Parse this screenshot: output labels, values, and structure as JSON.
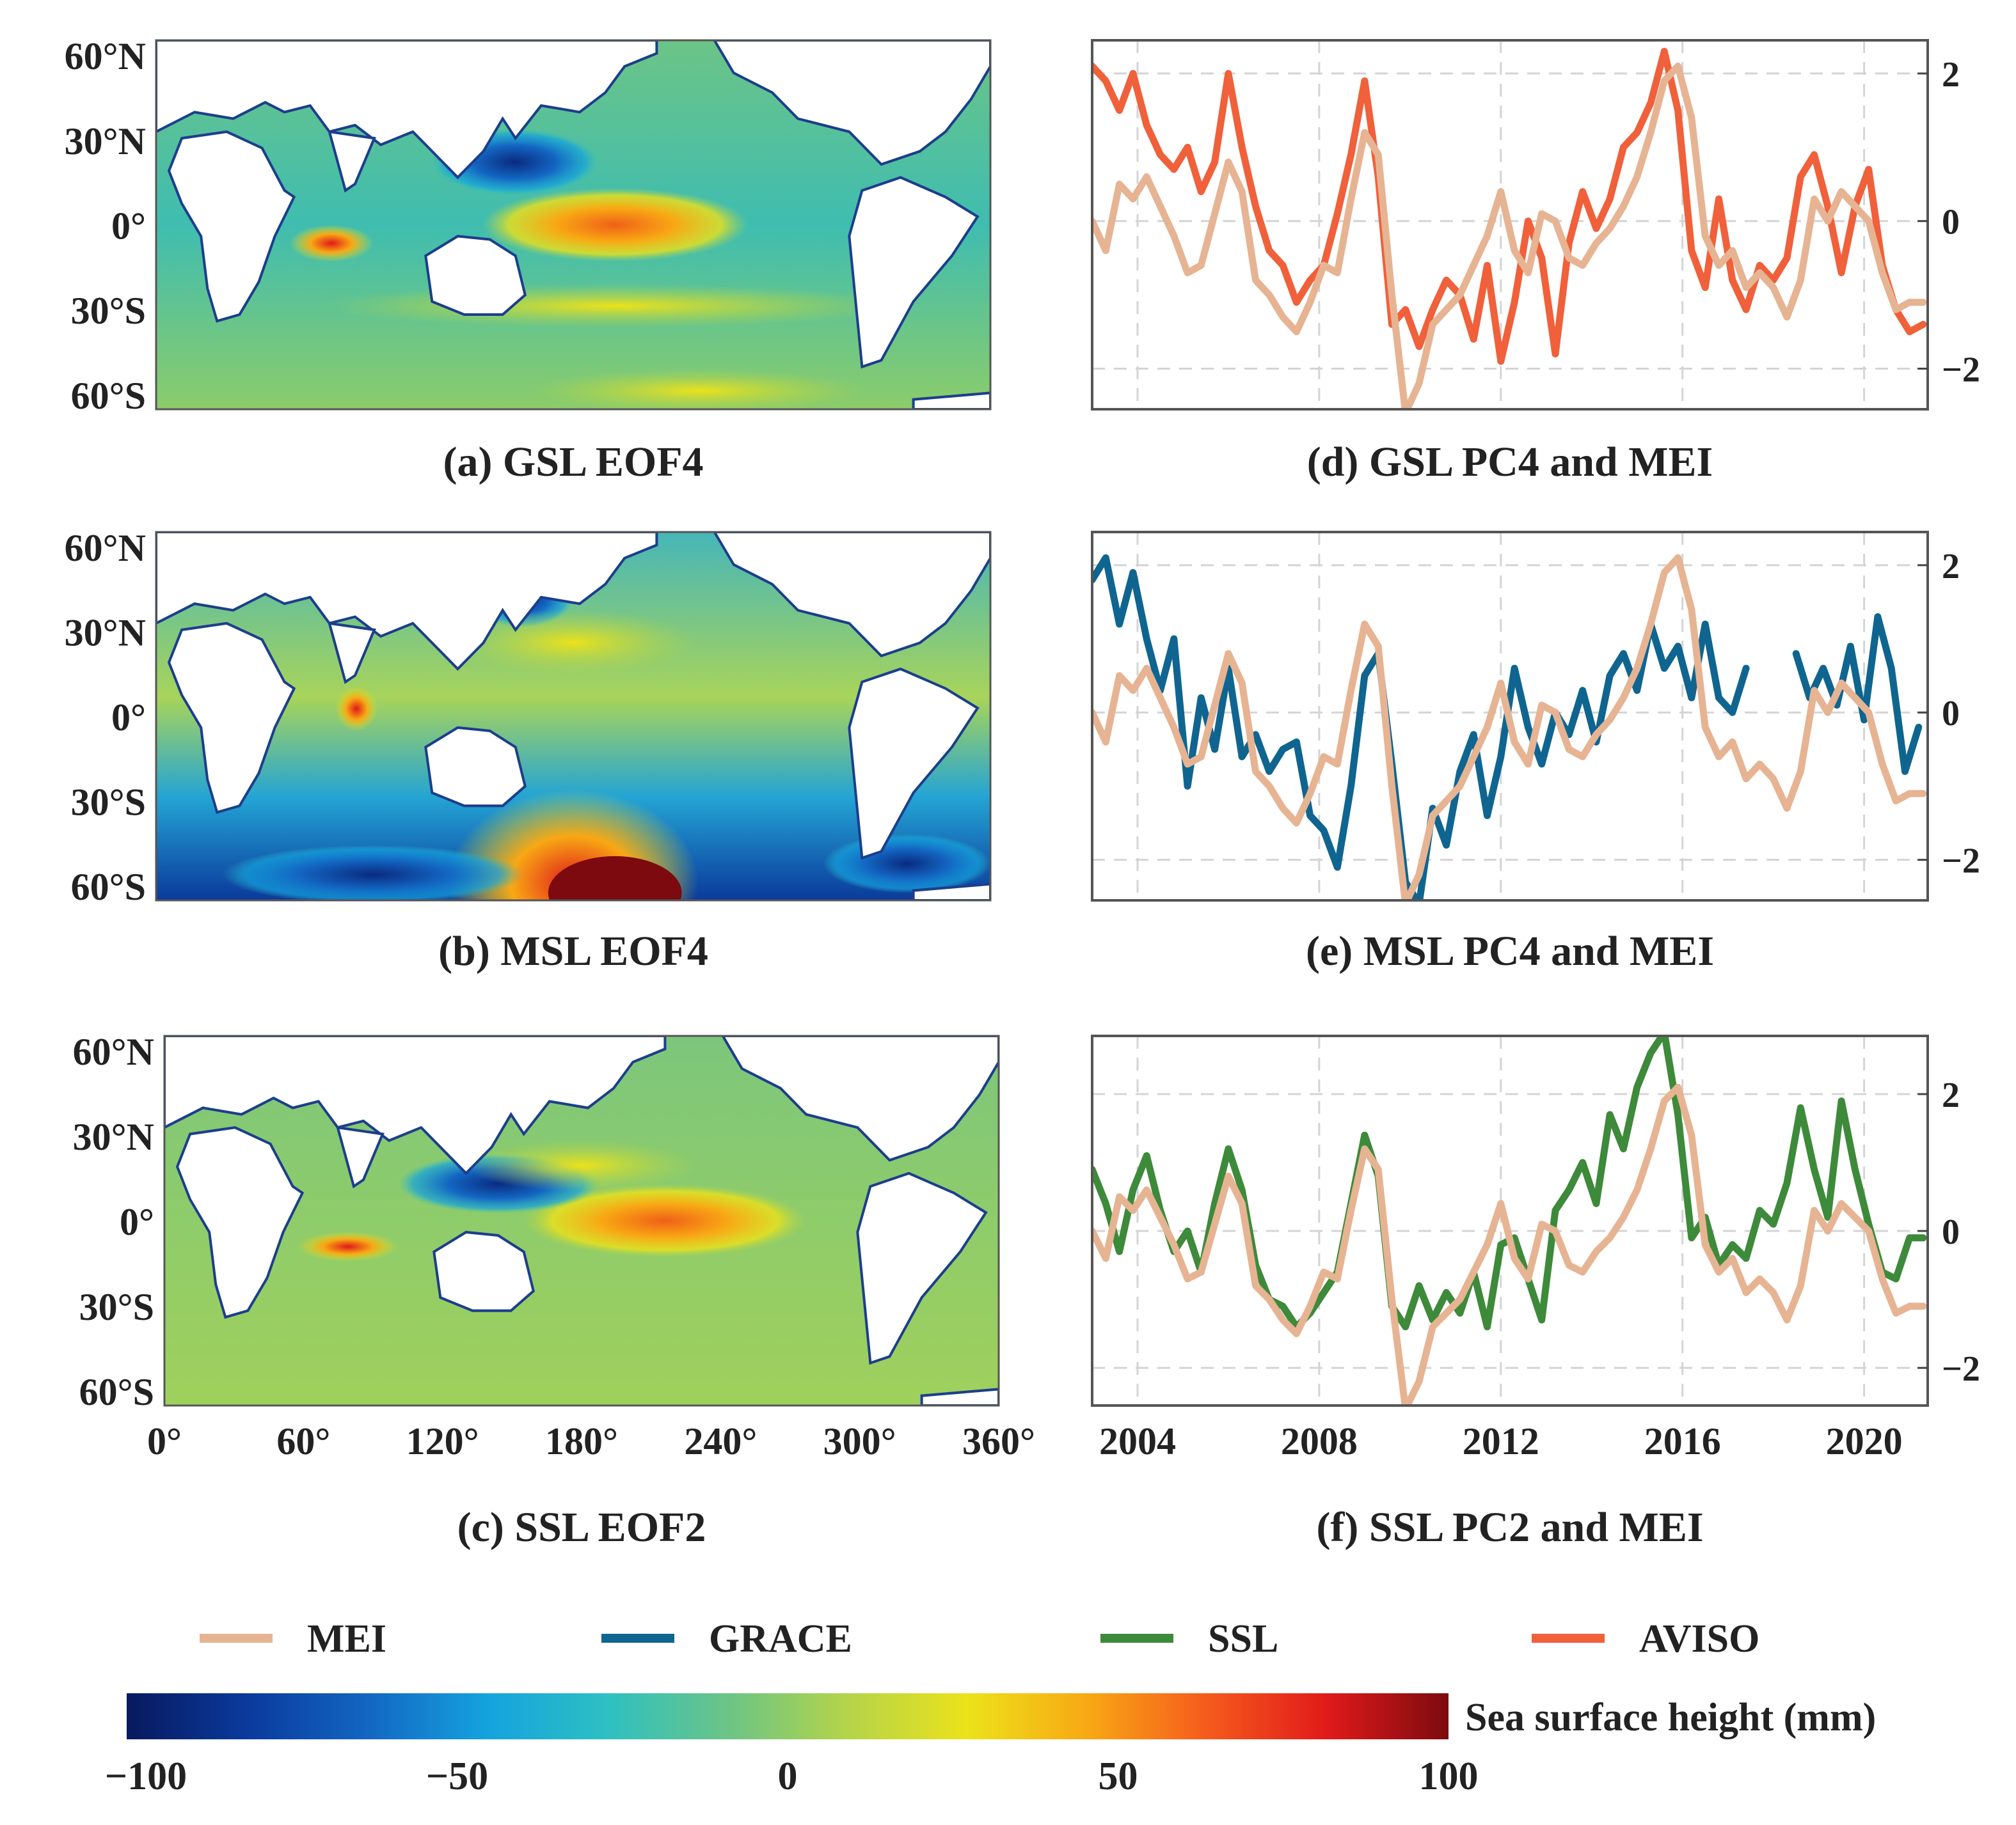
{
  "figure": {
    "maps": [
      {
        "id": "a",
        "caption": "(a) GSL EOF4",
        "variant": "gsl"
      },
      {
        "id": "b",
        "caption": "(b) MSL EOF4",
        "variant": "msl"
      },
      {
        "id": "c",
        "caption": "(c) SSL EOF2",
        "variant": "ssl"
      }
    ],
    "map_axes": {
      "lat_ticks": [
        "60°N",
        "30°N",
        "0°",
        "30°S",
        "60°S"
      ],
      "lon_ticks": [
        "0°",
        "60°",
        "120°",
        "180°",
        "240°",
        "300°",
        "360°"
      ]
    },
    "colorbar": {
      "label": "Sea surface height (mm)",
      "ticks": [
        "−100",
        "−50",
        "0",
        "50",
        "100"
      ],
      "range": [
        -100,
        100
      ],
      "colors": [
        "#08195e",
        "#0a3a9c",
        "#1366c2",
        "#14a3de",
        "#2ec0c2",
        "#6cc486",
        "#b4d44a",
        "#ece21a",
        "#f8a814",
        "#f55a1c",
        "#e01a1a",
        "#7c0a0e"
      ]
    },
    "legend": [
      {
        "name": "MEI",
        "color": "#e6b493"
      },
      {
        "name": "GRACE",
        "color": "#0f6590"
      },
      {
        "name": "SSL",
        "color": "#3d8a3a"
      },
      {
        "name": "AVISO",
        "color": "#f0603a"
      }
    ],
    "colors": {
      "mei": "#e6b493",
      "grace": "#0f6590",
      "ssl": "#3d8a3a",
      "aviso": "#f0603a",
      "grid": "#d4d4d4",
      "coast": "#1c3e8c"
    }
  },
  "chart_data": [
    {
      "id": "d",
      "type": "line",
      "title": "(d) GSL PC4 and MEI",
      "xlim": [
        2003.0,
        2021.4
      ],
      "ylim": [
        -2.55,
        2.45
      ],
      "yticks": [
        {
          "v": 2,
          "t": "2"
        },
        {
          "v": 0,
          "t": "0"
        },
        {
          "v": -2,
          "t": "−2"
        }
      ],
      "xticks": [],
      "xgrid": [
        2004,
        2008,
        2012,
        2016,
        2020
      ],
      "series": [
        {
          "name": "AVISO",
          "color": "#f0603a",
          "x": [
            2003.0,
            2003.3,
            2003.6,
            2003.9,
            2004.2,
            2004.5,
            2004.8,
            2005.1,
            2005.4,
            2005.7,
            2006.0,
            2006.3,
            2006.6,
            2006.9,
            2007.2,
            2007.5,
            2007.8,
            2008.1,
            2008.4,
            2008.7,
            2009.0,
            2009.3,
            2009.6,
            2009.9,
            2010.2,
            2010.5,
            2010.8,
            2011.1,
            2011.4,
            2011.7,
            2012.0,
            2012.3,
            2012.6,
            2012.9,
            2013.2,
            2013.5,
            2013.8,
            2014.1,
            2014.4,
            2014.7,
            2015.0,
            2015.3,
            2015.6,
            2015.9,
            2016.2,
            2016.5,
            2016.8,
            2017.1,
            2017.4,
            2017.7,
            2018.0,
            2018.3,
            2018.6,
            2018.9,
            2019.2,
            2019.5,
            2019.8,
            2020.1,
            2020.4,
            2020.7,
            2021.0,
            2021.3
          ],
          "y": [
            2.1,
            1.9,
            1.5,
            2.0,
            1.3,
            0.9,
            0.7,
            1.0,
            0.4,
            0.8,
            2.0,
            1.0,
            0.2,
            -0.4,
            -0.6,
            -1.1,
            -0.8,
            -0.6,
            0.1,
            0.9,
            1.9,
            0.6,
            -1.4,
            -1.2,
            -1.7,
            -1.2,
            -0.8,
            -1.0,
            -1.6,
            -0.6,
            -1.9,
            -1.1,
            0.0,
            -0.5,
            -1.8,
            -0.3,
            0.4,
            -0.1,
            0.3,
            1.0,
            1.2,
            1.6,
            2.3,
            1.5,
            -0.4,
            -0.9,
            0.3,
            -0.8,
            -1.2,
            -0.6,
            -0.8,
            -0.5,
            0.6,
            0.9,
            0.2,
            -0.7,
            0.2,
            0.7,
            -0.6,
            -1.2,
            -1.5,
            -1.4
          ]
        },
        {
          "name": "MEI",
          "color": "#e6b493",
          "x": [
            2003.0,
            2003.3,
            2003.6,
            2003.9,
            2004.2,
            2004.5,
            2004.8,
            2005.1,
            2005.4,
            2005.7,
            2006.0,
            2006.3,
            2006.6,
            2006.9,
            2007.2,
            2007.5,
            2007.8,
            2008.1,
            2008.4,
            2008.7,
            2009.0,
            2009.3,
            2009.6,
            2009.9,
            2010.2,
            2010.5,
            2010.8,
            2011.1,
            2011.4,
            2011.7,
            2012.0,
            2012.3,
            2012.6,
            2012.9,
            2013.2,
            2013.5,
            2013.8,
            2014.1,
            2014.4,
            2014.7,
            2015.0,
            2015.3,
            2015.6,
            2015.9,
            2016.2,
            2016.5,
            2016.8,
            2017.1,
            2017.4,
            2017.7,
            2018.0,
            2018.3,
            2018.6,
            2018.9,
            2019.2,
            2019.5,
            2019.8,
            2020.1,
            2020.4,
            2020.7,
            2021.0,
            2021.3
          ],
          "y": [
            0.0,
            -0.4,
            0.5,
            0.3,
            0.6,
            0.2,
            -0.2,
            -0.7,
            -0.6,
            0.1,
            0.8,
            0.4,
            -0.8,
            -1.0,
            -1.3,
            -1.5,
            -1.1,
            -0.6,
            -0.7,
            0.3,
            1.2,
            0.9,
            -1.0,
            -2.6,
            -2.2,
            -1.4,
            -1.2,
            -1.0,
            -0.6,
            -0.2,
            0.4,
            -0.4,
            -0.7,
            0.1,
            0.0,
            -0.5,
            -0.6,
            -0.3,
            -0.1,
            0.2,
            0.6,
            1.2,
            1.9,
            2.1,
            1.4,
            -0.2,
            -0.6,
            -0.4,
            -0.9,
            -0.7,
            -0.9,
            -1.3,
            -0.8,
            0.3,
            0.0,
            0.4,
            0.2,
            0.0,
            -0.7,
            -1.2,
            -1.1,
            -1.1
          ]
        }
      ]
    },
    {
      "id": "e",
      "type": "line",
      "title": "(e) MSL PC4 and MEI",
      "xlim": [
        2003.0,
        2021.4
      ],
      "ylim": [
        -2.55,
        2.45
      ],
      "yticks": [
        {
          "v": 2,
          "t": "2"
        },
        {
          "v": 0,
          "t": "0"
        },
        {
          "v": -2,
          "t": "−2"
        }
      ],
      "xticks": [],
      "xgrid": [
        2004,
        2008,
        2012,
        2016,
        2020
      ],
      "series": [
        {
          "name": "GRACE",
          "color": "#0f6590",
          "x": [
            2003.0,
            2003.3,
            2003.6,
            2003.9,
            2004.2,
            2004.5,
            2004.8,
            2005.1,
            2005.4,
            2005.7,
            2006.0,
            2006.3,
            2006.6,
            2006.9,
            2007.2,
            2007.5,
            2007.8,
            2008.1,
            2008.4,
            2008.7,
            2009.0,
            2009.3,
            2009.6,
            2009.9,
            2010.2,
            2010.5,
            2010.8,
            2011.1,
            2011.4,
            2011.7,
            2012.0,
            2012.3,
            2012.6,
            2012.9,
            2013.2,
            2013.5,
            2013.8,
            2014.1,
            2014.4,
            2014.7,
            2015.0,
            2015.3,
            2015.6,
            2015.9,
            2016.2,
            2016.5,
            2016.8,
            2017.1,
            2017.4,
            null,
            2018.5,
            2018.8,
            2019.1,
            2019.4,
            2019.7,
            2020.0,
            2020.3,
            2020.6,
            2020.9,
            2021.2
          ],
          "y": [
            1.8,
            2.1,
            1.2,
            1.9,
            1.0,
            0.3,
            1.0,
            -1.0,
            0.2,
            -0.5,
            0.6,
            -0.6,
            -0.3,
            -0.8,
            -0.5,
            -0.4,
            -1.4,
            -1.6,
            -2.1,
            -1.0,
            0.5,
            0.8,
            -0.7,
            -2.3,
            -2.6,
            -1.3,
            -1.8,
            -0.8,
            -0.3,
            -1.4,
            -0.6,
            0.6,
            -0.2,
            -0.7,
            0.0,
            -0.3,
            0.3,
            -0.4,
            0.5,
            0.8,
            0.3,
            1.2,
            0.6,
            0.9,
            0.2,
            1.2,
            0.2,
            0.0,
            0.6,
            null,
            0.8,
            0.2,
            0.6,
            0.1,
            0.9,
            -0.1,
            1.3,
            0.6,
            -0.8,
            -0.2
          ]
        },
        {
          "name": "MEI",
          "color": "#e6b493",
          "x": [
            2003.0,
            2003.3,
            2003.6,
            2003.9,
            2004.2,
            2004.5,
            2004.8,
            2005.1,
            2005.4,
            2005.7,
            2006.0,
            2006.3,
            2006.6,
            2006.9,
            2007.2,
            2007.5,
            2007.8,
            2008.1,
            2008.4,
            2008.7,
            2009.0,
            2009.3,
            2009.6,
            2009.9,
            2010.2,
            2010.5,
            2010.8,
            2011.1,
            2011.4,
            2011.7,
            2012.0,
            2012.3,
            2012.6,
            2012.9,
            2013.2,
            2013.5,
            2013.8,
            2014.1,
            2014.4,
            2014.7,
            2015.0,
            2015.3,
            2015.6,
            2015.9,
            2016.2,
            2016.5,
            2016.8,
            2017.1,
            2017.4,
            2017.7,
            2018.0,
            2018.3,
            2018.6,
            2018.9,
            2019.2,
            2019.5,
            2019.8,
            2020.1,
            2020.4,
            2020.7,
            2021.0,
            2021.3
          ],
          "y": [
            0.0,
            -0.4,
            0.5,
            0.3,
            0.6,
            0.2,
            -0.2,
            -0.7,
            -0.6,
            0.1,
            0.8,
            0.4,
            -0.8,
            -1.0,
            -1.3,
            -1.5,
            -1.1,
            -0.6,
            -0.7,
            0.3,
            1.2,
            0.9,
            -1.0,
            -2.6,
            -2.2,
            -1.4,
            -1.2,
            -1.0,
            -0.6,
            -0.2,
            0.4,
            -0.4,
            -0.7,
            0.1,
            0.0,
            -0.5,
            -0.6,
            -0.3,
            -0.1,
            0.2,
            0.6,
            1.2,
            1.9,
            2.1,
            1.4,
            -0.2,
            -0.6,
            -0.4,
            -0.9,
            -0.7,
            -0.9,
            -1.3,
            -0.8,
            0.3,
            0.0,
            0.4,
            0.2,
            0.0,
            -0.7,
            -1.2,
            -1.1,
            -1.1
          ]
        }
      ]
    },
    {
      "id": "f",
      "type": "line",
      "title": "(f) SSL PC2 and MEI",
      "xlim": [
        2003.0,
        2021.4
      ],
      "ylim": [
        -2.55,
        2.85
      ],
      "yticks": [
        {
          "v": 2,
          "t": "2"
        },
        {
          "v": 0,
          "t": "0"
        },
        {
          "v": -2,
          "t": "−2"
        }
      ],
      "xticks": [
        {
          "v": 2004,
          "t": "2004"
        },
        {
          "v": 2008,
          "t": "2008"
        },
        {
          "v": 2012,
          "t": "2012"
        },
        {
          "v": 2016,
          "t": "2016"
        },
        {
          "v": 2020,
          "t": "2020"
        }
      ],
      "xgrid": [
        2004,
        2008,
        2012,
        2016,
        2020
      ],
      "series": [
        {
          "name": "SSL",
          "color": "#3d8a3a",
          "x": [
            2003.0,
            2003.3,
            2003.6,
            2003.9,
            2004.2,
            2004.5,
            2004.8,
            2005.1,
            2005.4,
            2005.7,
            2006.0,
            2006.3,
            2006.6,
            2006.9,
            2007.2,
            2007.5,
            2007.8,
            2008.1,
            2008.4,
            2008.7,
            2009.0,
            2009.3,
            2009.6,
            2009.9,
            2010.2,
            2010.5,
            2010.8,
            2011.1,
            2011.4,
            2011.7,
            2012.0,
            2012.3,
            2012.6,
            2012.9,
            2013.2,
            2013.5,
            2013.8,
            2014.1,
            2014.4,
            2014.7,
            2015.0,
            2015.3,
            2015.6,
            2015.9,
            2016.2,
            2016.5,
            2016.8,
            2017.1,
            2017.4,
            2017.7,
            2018.0,
            2018.3,
            2018.6,
            2018.9,
            2019.2,
            2019.5,
            2019.8,
            2020.1,
            2020.4,
            2020.7,
            2021.0,
            2021.3
          ],
          "y": [
            0.9,
            0.4,
            -0.3,
            0.6,
            1.1,
            0.3,
            -0.3,
            0.0,
            -0.6,
            0.4,
            1.2,
            0.6,
            -0.5,
            -1.0,
            -1.1,
            -1.4,
            -1.2,
            -0.9,
            -0.6,
            0.4,
            1.4,
            0.8,
            -1.1,
            -1.4,
            -0.8,
            -1.3,
            -0.9,
            -1.2,
            -0.6,
            -1.4,
            -0.2,
            -0.1,
            -0.7,
            -1.3,
            0.3,
            0.6,
            1.0,
            0.4,
            1.7,
            1.2,
            2.1,
            2.6,
            2.9,
            1.7,
            -0.1,
            0.2,
            -0.5,
            -0.2,
            -0.4,
            0.3,
            0.1,
            0.7,
            1.8,
            0.9,
            0.2,
            1.9,
            0.9,
            0.1,
            -0.6,
            -0.7,
            -0.1,
            -0.1
          ]
        },
        {
          "name": "MEI",
          "color": "#e6b493",
          "x": [
            2003.0,
            2003.3,
            2003.6,
            2003.9,
            2004.2,
            2004.5,
            2004.8,
            2005.1,
            2005.4,
            2005.7,
            2006.0,
            2006.3,
            2006.6,
            2006.9,
            2007.2,
            2007.5,
            2007.8,
            2008.1,
            2008.4,
            2008.7,
            2009.0,
            2009.3,
            2009.6,
            2009.9,
            2010.2,
            2010.5,
            2010.8,
            2011.1,
            2011.4,
            2011.7,
            2012.0,
            2012.3,
            2012.6,
            2012.9,
            2013.2,
            2013.5,
            2013.8,
            2014.1,
            2014.4,
            2014.7,
            2015.0,
            2015.3,
            2015.6,
            2015.9,
            2016.2,
            2016.5,
            2016.8,
            2017.1,
            2017.4,
            2017.7,
            2018.0,
            2018.3,
            2018.6,
            2018.9,
            2019.2,
            2019.5,
            2019.8,
            2020.1,
            2020.4,
            2020.7,
            2021.0,
            2021.3
          ],
          "y": [
            0.0,
            -0.4,
            0.5,
            0.3,
            0.6,
            0.2,
            -0.2,
            -0.7,
            -0.6,
            0.1,
            0.8,
            0.4,
            -0.8,
            -1.0,
            -1.3,
            -1.5,
            -1.1,
            -0.6,
            -0.7,
            0.3,
            1.2,
            0.9,
            -1.0,
            -2.6,
            -2.2,
            -1.4,
            -1.2,
            -1.0,
            -0.6,
            -0.2,
            0.4,
            -0.4,
            -0.7,
            0.1,
            0.0,
            -0.5,
            -0.6,
            -0.3,
            -0.1,
            0.2,
            0.6,
            1.2,
            1.9,
            2.1,
            1.4,
            -0.2,
            -0.6,
            -0.4,
            -0.9,
            -0.7,
            -0.9,
            -1.3,
            -0.8,
            0.3,
            0.0,
            0.4,
            0.2,
            0.0,
            -0.7,
            -1.2,
            -1.1,
            -1.1
          ]
        }
      ]
    }
  ]
}
